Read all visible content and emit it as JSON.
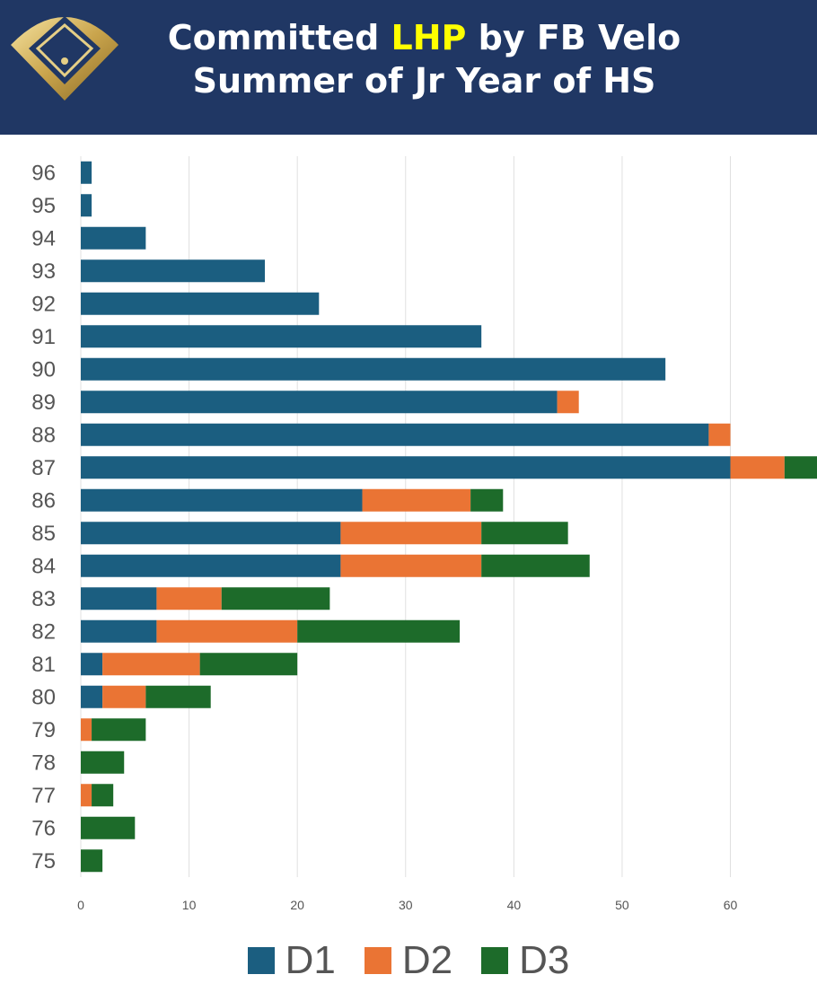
{
  "header": {
    "title_pre": "Committed ",
    "title_highlight": "LHP",
    "title_post": " by FB Velo",
    "subtitle": "Summer of Jr Year of HS",
    "logo_icon": "baseball-diamond-icon"
  },
  "colors": {
    "header_bg": "#203764",
    "highlight": "#ffff00",
    "D1": "#1b5e80",
    "D2": "#ea7434",
    "D3": "#1d6b2a",
    "grid": "#e0e0e0"
  },
  "chart_data": {
    "type": "bar",
    "orientation": "horizontal",
    "stacked": true,
    "categories": [
      "96",
      "95",
      "94",
      "93",
      "92",
      "91",
      "90",
      "89",
      "88",
      "87",
      "86",
      "85",
      "84",
      "83",
      "82",
      "81",
      "80",
      "79",
      "78",
      "77",
      "76",
      "75"
    ],
    "series": [
      {
        "name": "D1",
        "values": [
          1,
          1,
          6,
          17,
          22,
          37,
          54,
          44,
          58,
          60,
          26,
          24,
          24,
          7,
          7,
          2,
          2,
          0,
          0,
          0,
          0,
          0
        ]
      },
      {
        "name": "D2",
        "values": [
          0,
          0,
          0,
          0,
          0,
          0,
          0,
          2,
          2,
          5,
          10,
          13,
          13,
          6,
          13,
          9,
          4,
          1,
          0,
          1,
          0,
          0
        ]
      },
      {
        "name": "D3",
        "values": [
          0,
          0,
          0,
          0,
          0,
          0,
          0,
          0,
          0,
          3,
          3,
          8,
          10,
          10,
          15,
          9,
          6,
          5,
          4,
          2,
          5,
          2
        ]
      }
    ],
    "xticks": [
      0,
      10,
      20,
      30,
      40,
      50,
      60
    ],
    "xlim": [
      0,
      68
    ],
    "grid": true,
    "legend": "bottom"
  }
}
